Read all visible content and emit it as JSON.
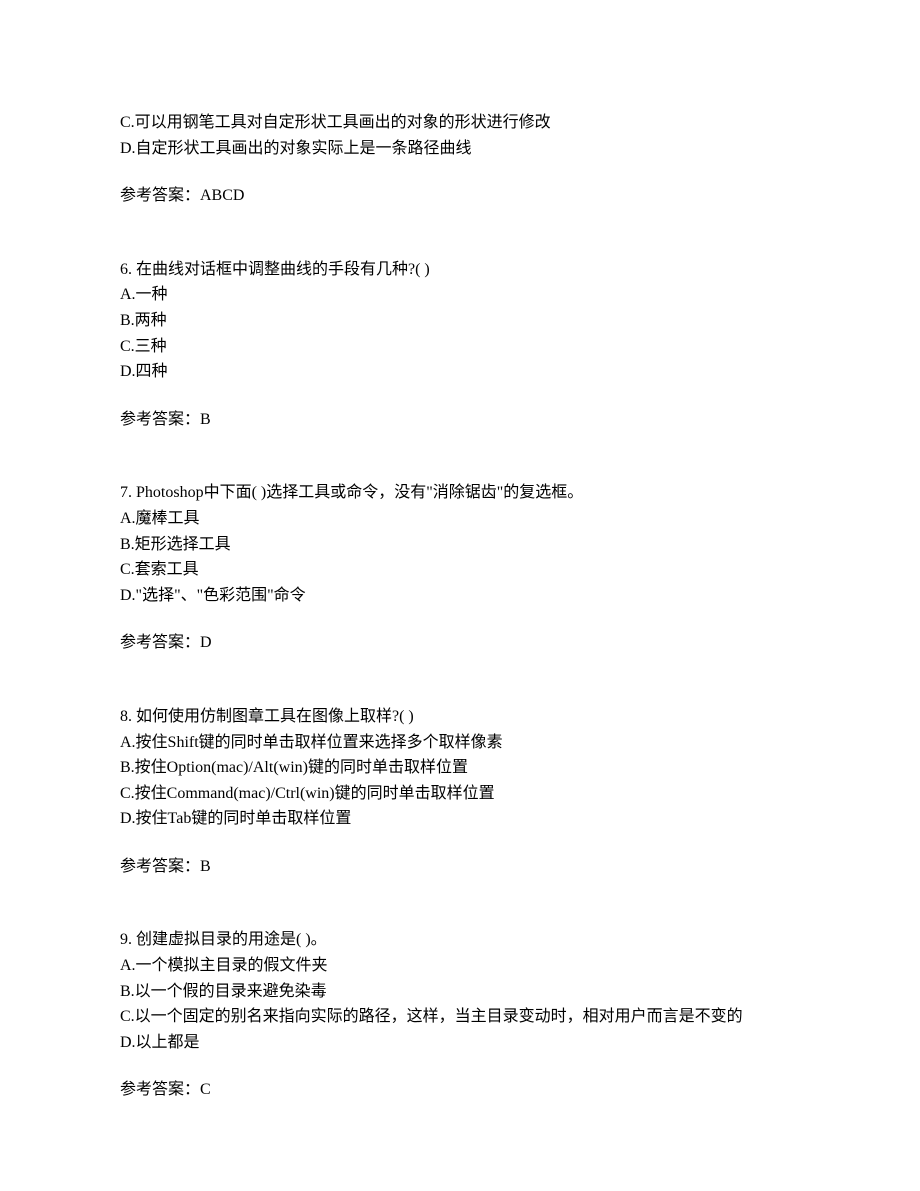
{
  "partial_options": {
    "c": "C.可以用钢笔工具对自定形状工具画出的对象的形状进行修改",
    "d": "D.自定形状工具画出的对象实际上是一条路径曲线",
    "answer": "参考答案：ABCD"
  },
  "q6": {
    "stem": "6.  在曲线对话框中调整曲线的手段有几种?(  )",
    "a": "A.一种",
    "b": "B.两种",
    "c": "C.三种",
    "d": "D.四种",
    "answer": "参考答案：B"
  },
  "q7": {
    "stem": "7.  Photoshop中下面(  )选择工具或命令，没有\"消除锯齿\"的复选框。",
    "a": "A.魔棒工具",
    "b": "B.矩形选择工具",
    "c": "C.套索工具",
    "d": "D.\"选择\"、\"色彩范围\"命令",
    "answer": "参考答案：D"
  },
  "q8": {
    "stem": "8.  如何使用仿制图章工具在图像上取样?(  )",
    "a": "A.按住Shift键的同时单击取样位置来选择多个取样像素",
    "b": "B.按住Option(mac)/Alt(win)键的同时单击取样位置",
    "c": "C.按住Command(mac)/Ctrl(win)键的同时单击取样位置",
    "d": "D.按住Tab键的同时单击取样位置",
    "answer": "参考答案：B"
  },
  "q9": {
    "stem": "9.  创建虚拟目录的用途是(  )。",
    "a": "A.一个模拟主目录的假文件夹",
    "b": "B.以一个假的目录来避免染毒",
    "c": "C.以一个固定的别名来指向实际的路径，这样，当主目录变动时，相对用户而言是不变的",
    "d": "D.以上都是",
    "answer": "参考答案：C"
  }
}
